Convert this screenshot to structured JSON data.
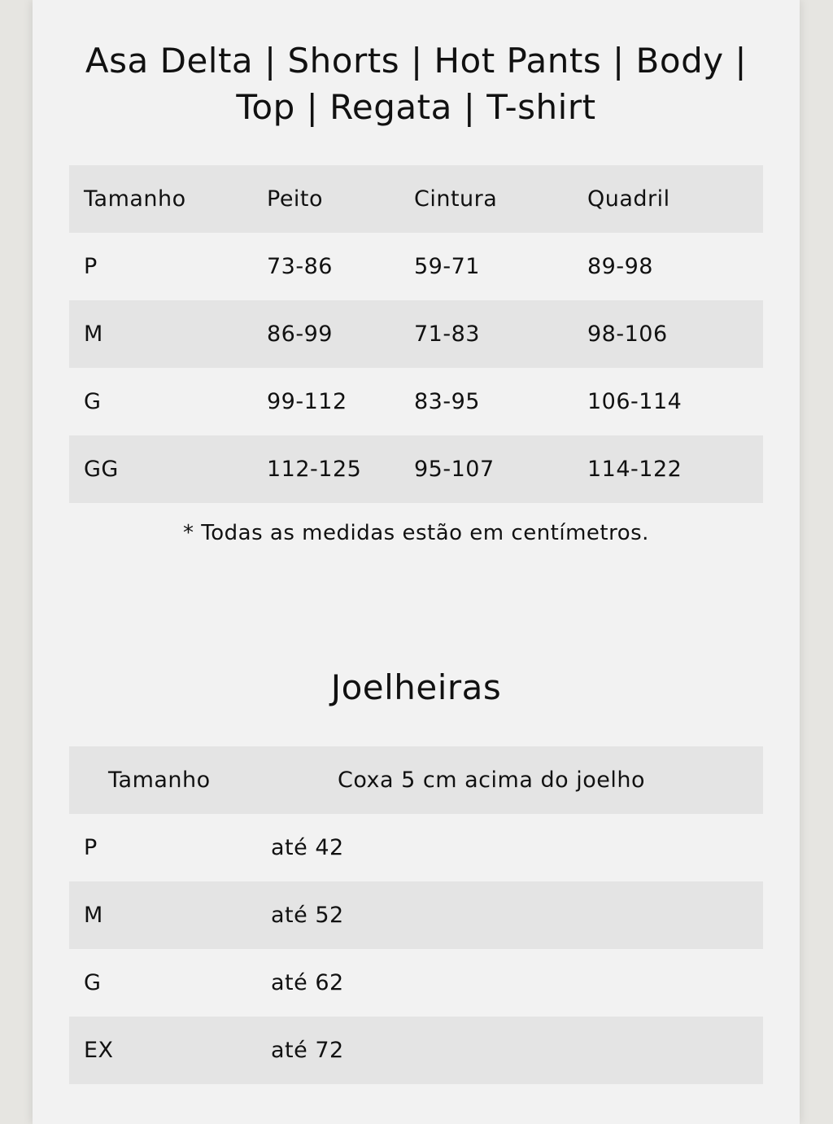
{
  "section1": {
    "title_line1": "Asa Delta | Shorts | Hot Pants | Body |",
    "title_line2": "Top | Regata | T-shirt",
    "headers": [
      "Tamanho",
      "Peito",
      "Cintura",
      "Quadril"
    ],
    "rows": [
      [
        "P",
        "73-86",
        "59-71",
        "89-98"
      ],
      [
        "M",
        "86-99",
        "71-83",
        "98-106"
      ],
      [
        "G",
        "99-112",
        "83-95",
        "106-114"
      ],
      [
        "GG",
        "112-125",
        "95-107",
        "114-122"
      ]
    ],
    "note": "* Todas as medidas estão em centímetros."
  },
  "section2": {
    "title": "Joelheiras",
    "headers": [
      "Tamanho",
      "Coxa 5 cm acima do joelho"
    ],
    "rows": [
      [
        "P",
        "até 42"
      ],
      [
        "M",
        "até 52"
      ],
      [
        "G",
        "até 62"
      ],
      [
        "EX",
        "até 72"
      ]
    ]
  },
  "colors": {
    "page_bg": "#e6e5e1",
    "card_bg": "#f2f2f2",
    "row_shade": "#e4e4e4",
    "text": "#111111"
  }
}
